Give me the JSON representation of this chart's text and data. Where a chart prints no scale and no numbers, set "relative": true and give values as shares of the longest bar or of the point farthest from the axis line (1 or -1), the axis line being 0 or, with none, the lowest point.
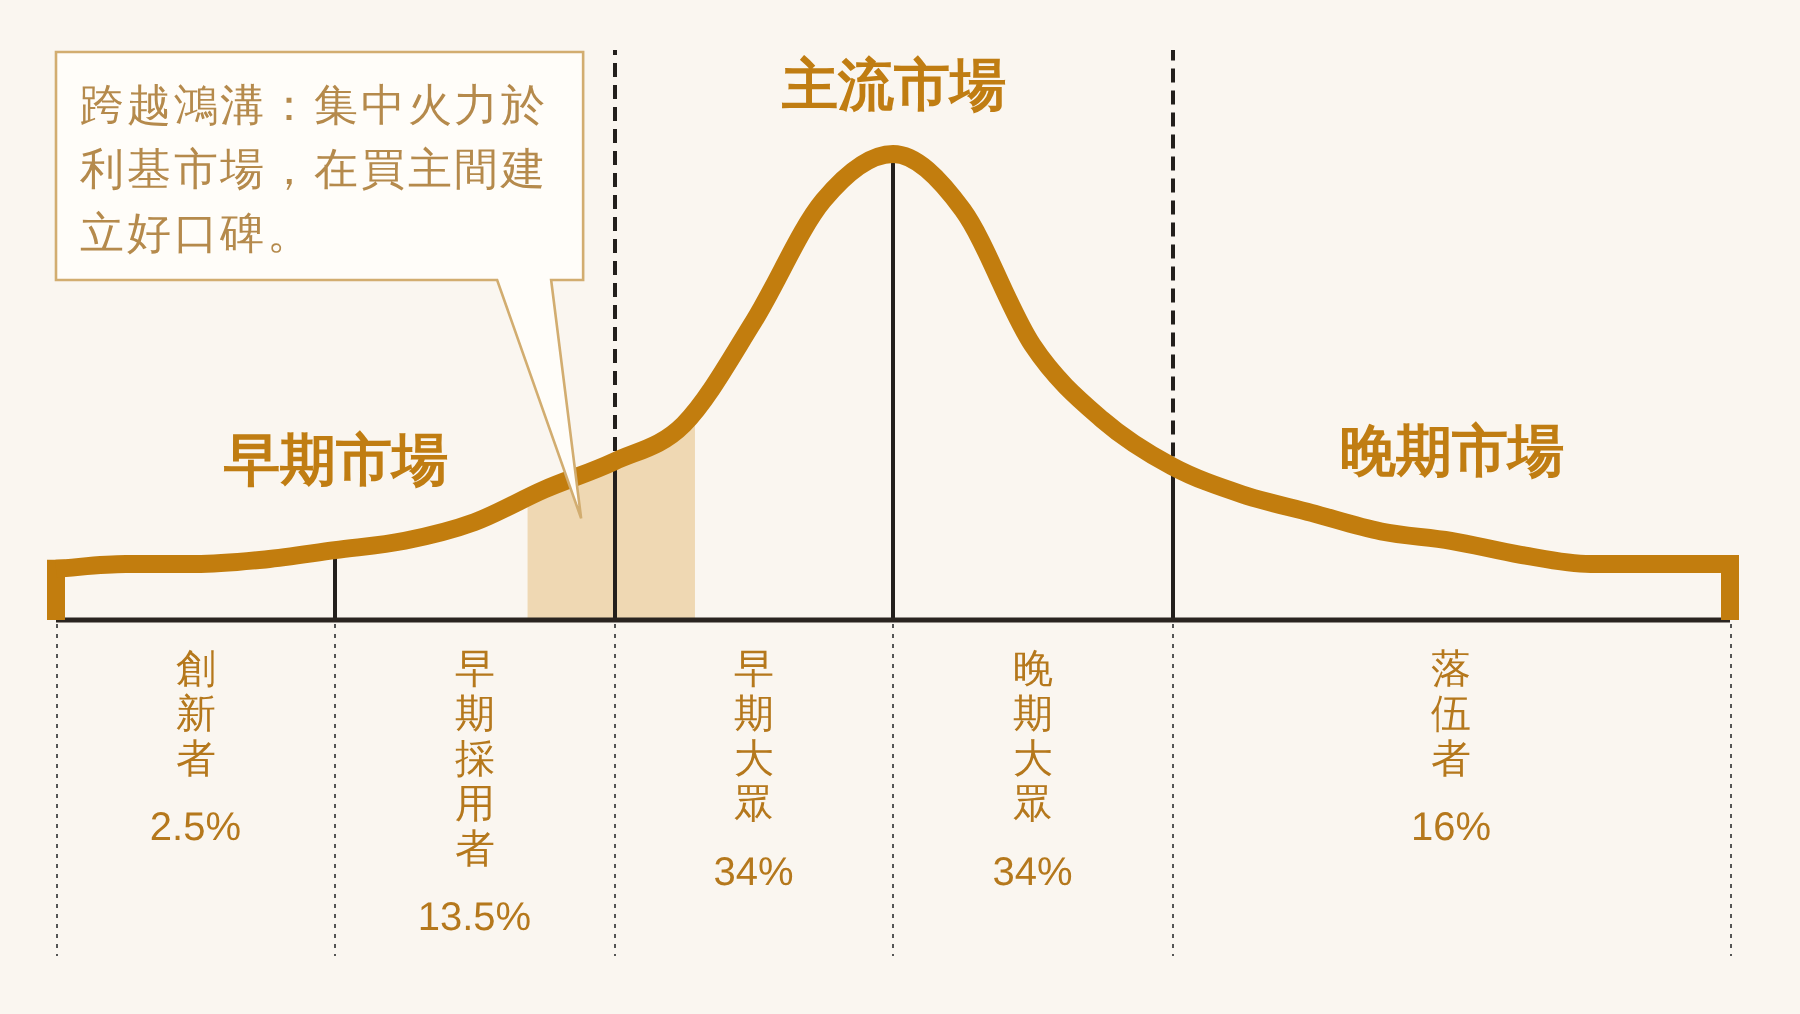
{
  "chart_data": {
    "type": "line",
    "relative": true,
    "categories": [
      null,
      null,
      "創新者 2.5%",
      null,
      null,
      null,
      "早期採用者 13.5%",
      null,
      null,
      null,
      "早期大眾 34%",
      null,
      null,
      null,
      "晚期大眾 34%",
      null,
      null,
      null,
      null,
      null,
      "落伍者 16%",
      null,
      null,
      null,
      null
    ],
    "series": [
      {
        "color": "#c27d0e",
        "values": [
          0.11,
          0.12,
          0.12,
          0.13,
          0.15,
          0.17,
          0.21,
          0.28,
          0.34,
          0.42,
          0.64,
          0.9,
          1,
          0.88,
          0.59,
          0.43,
          0.33,
          0.27,
          0.23,
          0.19,
          0.17,
          0.14,
          0.12,
          0.12,
          0.12
        ]
      }
    ],
    "annotations": [
      "跨越鴻溝：集中火力於利基市場，在買主間建立好口碑。",
      "早期市場",
      "主流市場",
      "晚期市場"
    ]
  }
}
